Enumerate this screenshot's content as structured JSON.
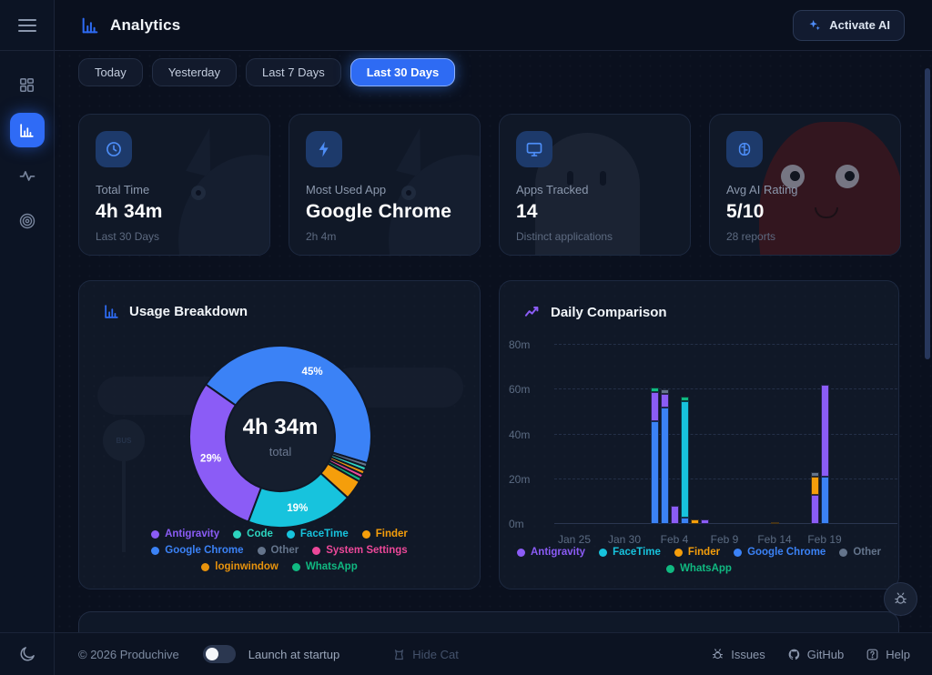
{
  "app": {
    "header": {
      "title": "Analytics",
      "activate_ai_label": "Activate AI"
    },
    "sidebar": {
      "items": [
        {
          "icon": "dashboard-grid-icon",
          "active": false
        },
        {
          "icon": "analytics-chart-icon",
          "active": true
        },
        {
          "icon": "activity-pulse-icon",
          "active": false
        },
        {
          "icon": "focus-target-icon",
          "active": false
        }
      ]
    },
    "filters": {
      "options": [
        "Today",
        "Yesterday",
        "Last 7 Days",
        "Last 30 Days"
      ],
      "selected": "Last 30 Days"
    },
    "stats": [
      {
        "icon": "clock-icon",
        "label": "Total Time",
        "value": "4h 34m",
        "sub": "Last 30 Days"
      },
      {
        "icon": "bolt-icon",
        "label": "Most Used App",
        "value": "Google Chrome",
        "sub": "2h 4m"
      },
      {
        "icon": "monitor-icon",
        "label": "Apps Tracked",
        "value": "14",
        "sub": "Distinct applications"
      },
      {
        "icon": "brain-icon",
        "label": "Avg AI Rating",
        "value": "5/10",
        "sub": "28 reports"
      }
    ],
    "footer": {
      "copyright": "© 2026 Produchive",
      "launch_label": "Launch at startup",
      "launch_enabled": false,
      "hide_cat_label": "Hide Cat",
      "links": [
        {
          "icon": "bug-icon",
          "label": "Issues"
        },
        {
          "icon": "github-icon",
          "label": "GitHub"
        },
        {
          "icon": "help-icon",
          "label": "Help"
        }
      ]
    },
    "decorations": {
      "bus_sign": "BUS"
    }
  },
  "colors": {
    "accent": "#2e6bf3",
    "apps": {
      "Antigravity": "#8b5cf6",
      "Code": "#2dd4bf",
      "FaceTime": "#17c3dd",
      "Finder": "#f59e0b",
      "Google Chrome": "#3b82f6",
      "Other": "#64748b",
      "System Settings": "#ec4899",
      "loginwindow": "#e8930c",
      "WhatsApp": "#10b981"
    }
  },
  "chart_data": [
    {
      "type": "pie",
      "title": "Usage Breakdown",
      "center_label": "4h 34m",
      "center_sublabel": "total",
      "unit": "%",
      "start_angle_deg": -55,
      "inner_radius_ratio": 0.6,
      "label_threshold_pct": 15,
      "slices": [
        {
          "label": "Google Chrome",
          "value": 45
        },
        {
          "label": "Other",
          "value": 0.7
        },
        {
          "label": "Code",
          "value": 0.7
        },
        {
          "label": "loginwindow",
          "value": 0.7
        },
        {
          "label": "System Settings",
          "value": 0.7
        },
        {
          "label": "WhatsApp",
          "value": 0.7
        },
        {
          "label": "Finder",
          "value": 3.5
        },
        {
          "label": "FaceTime",
          "value": 19
        },
        {
          "label": "Antigravity",
          "value": 29
        }
      ],
      "legend": [
        "Antigravity",
        "Code",
        "FaceTime",
        "Finder",
        "Google Chrome",
        "Other",
        "System Settings",
        "loginwindow",
        "WhatsApp"
      ],
      "legend_position": "bottom"
    },
    {
      "type": "bar",
      "title": "Daily Comparison",
      "stacked": true,
      "ylabel": "minutes",
      "ylim": [
        0,
        80
      ],
      "y_ticks": [
        0,
        20,
        40,
        60,
        80
      ],
      "y_tick_labels": [
        "0m",
        "20m",
        "40m",
        "60m",
        "80m"
      ],
      "x_tick_labels": [
        "Jan 25",
        "Jan 30",
        "Feb 4",
        "Feb 9",
        "Feb 14",
        "Feb 19"
      ],
      "x_tick_days": [
        2,
        7,
        12,
        17,
        22,
        27
      ],
      "grid": "dashed-horizontal",
      "bars": [
        {
          "date": "Feb 2",
          "day_index": 10,
          "stack": [
            [
              "Google Chrome",
              46
            ],
            [
              "Antigravity",
              13
            ],
            [
              "WhatsApp",
              2
            ]
          ]
        },
        {
          "date": "Feb 3",
          "day_index": 11,
          "stack": [
            [
              "Google Chrome",
              52
            ],
            [
              "Antigravity",
              6
            ],
            [
              "Other",
              2
            ]
          ]
        },
        {
          "date": "Feb 4",
          "day_index": 12,
          "stack": [
            [
              "Antigravity",
              8
            ]
          ]
        },
        {
          "date": "Feb 5",
          "day_index": 13,
          "stack": [
            [
              "Google Chrome",
              3
            ],
            [
              "FaceTime",
              52
            ],
            [
              "WhatsApp",
              2
            ]
          ]
        },
        {
          "date": "Feb 6",
          "day_index": 14,
          "stack": [
            [
              "Finder",
              2
            ]
          ]
        },
        {
          "date": "Feb 7",
          "day_index": 15,
          "stack": [
            [
              "Antigravity",
              2
            ]
          ]
        },
        {
          "date": "Feb 14",
          "day_index": 22,
          "stack": [
            [
              "Finder",
              1
            ]
          ]
        },
        {
          "date": "Feb 18",
          "day_index": 26,
          "stack": [
            [
              "Antigravity",
              13
            ],
            [
              "Finder",
              8
            ],
            [
              "Other",
              2
            ]
          ]
        },
        {
          "date": "Feb 19",
          "day_index": 27,
          "stack": [
            [
              "Google Chrome",
              21
            ],
            [
              "Antigravity",
              41
            ]
          ]
        }
      ],
      "legend": [
        "Antigravity",
        "FaceTime",
        "Finder",
        "Google Chrome",
        "Other",
        "WhatsApp"
      ],
      "legend_position": "bottom"
    }
  ]
}
